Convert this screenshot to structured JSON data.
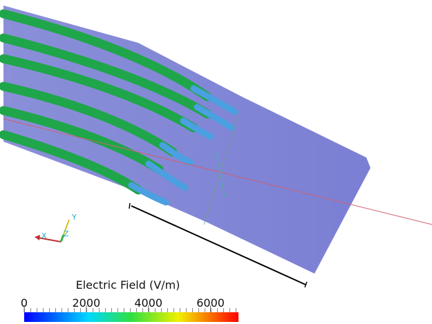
{
  "colorbar": {
    "title": "Electric Field (V/m)",
    "range": [
      0,
      6900
    ],
    "ticks": [
      0,
      2000,
      4000,
      6000
    ]
  },
  "axes_triad": {
    "x": "X",
    "y": "Y",
    "z": "Z"
  }
}
